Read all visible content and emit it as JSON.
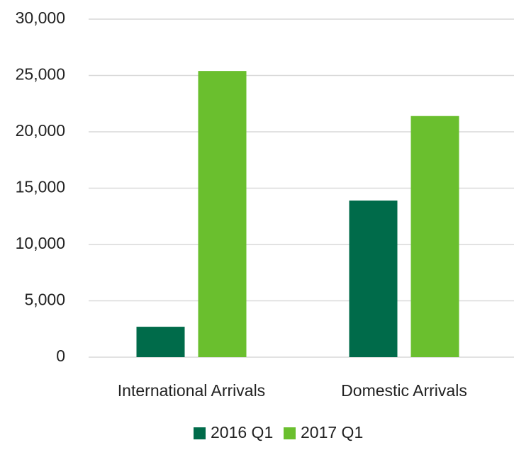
{
  "chart_data": {
    "type": "bar",
    "categories": [
      "International Arrivals",
      "Domestic Arrivals"
    ],
    "series": [
      {
        "name": "2016 Q1",
        "color": "#006b4a",
        "values": [
          2700,
          13900
        ]
      },
      {
        "name": "2017 Q1",
        "color": "#6abf2e",
        "values": [
          25400,
          21400
        ]
      }
    ],
    "ylim": [
      0,
      30000
    ],
    "yticks": [
      0,
      {
        "value": 5000,
        "label": "5,000"
      },
      {
        "value": 10000,
        "label": "10,000"
      },
      {
        "value": 15000,
        "label": "15,000"
      },
      {
        "value": 20000,
        "label": "20,000"
      },
      {
        "value": 25000,
        "label": "25,000"
      },
      {
        "value": 30000,
        "label": "30,000"
      }
    ],
    "grid": true,
    "legend": "bottom"
  }
}
